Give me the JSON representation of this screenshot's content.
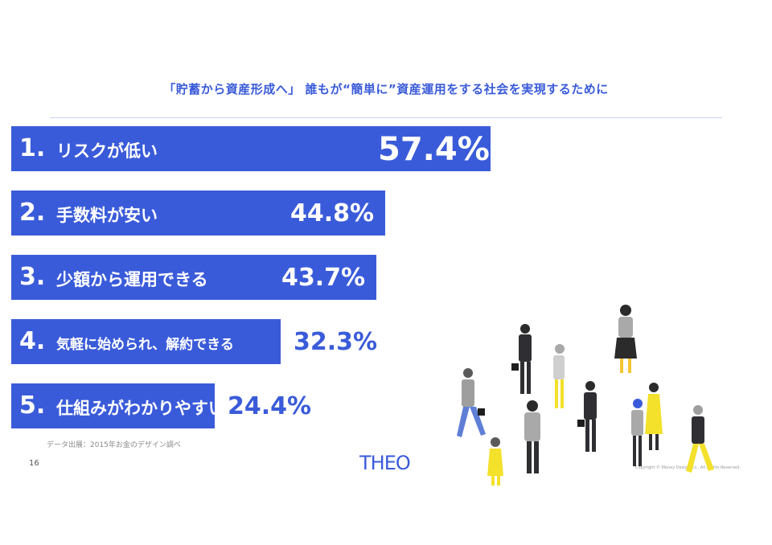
{
  "title": "「貯蓄から資産形成へ」 誰もが“簡単に”資産運用をする社会を実現するために",
  "chart_data": {
    "type": "bar",
    "orientation": "horizontal",
    "categories": [
      "リスクが低い",
      "手数料が安い",
      "少額から運用できる",
      "気軽に始められ、解約できる",
      "仕組みがわかりやすい"
    ],
    "ranks": [
      "1.",
      "2.",
      "3.",
      "4.",
      "5."
    ],
    "values": [
      57.4,
      44.8,
      43.7,
      32.3,
      24.4
    ],
    "value_labels": [
      "57.4%",
      "44.8%",
      "43.7%",
      "32.3%",
      "24.4%"
    ],
    "unit": "%",
    "bar_color": "#3a5bd9"
  },
  "source": "データ出展：2015年お金のデザイン調べ",
  "page_number": "16",
  "logo_text": "THEO",
  "copyright": "Copyright © Money Design Co., All Rights Reserved."
}
